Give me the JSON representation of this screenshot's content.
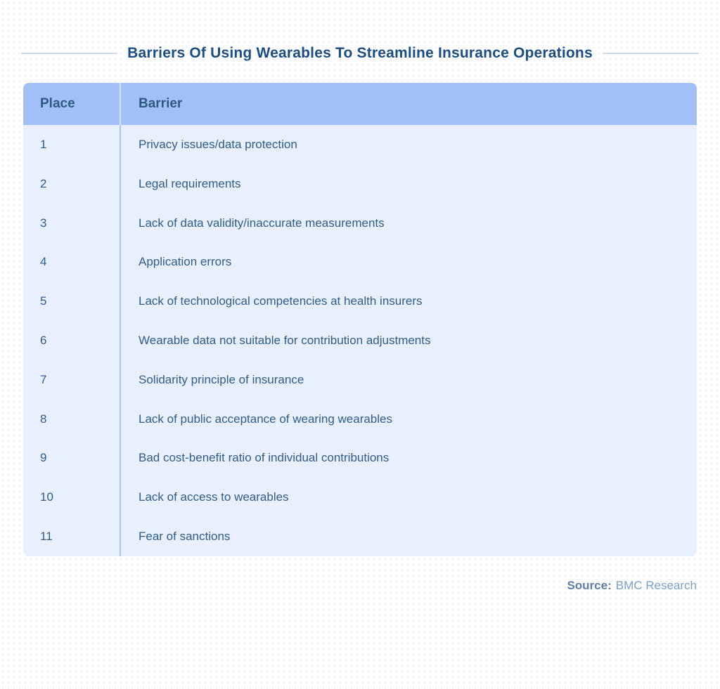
{
  "title": "Barriers Of Using Wearables To Streamline Insurance Operations",
  "source": {
    "label": "Source:",
    "value": "BMC Research"
  },
  "colors": {
    "title_text": "#1b4e84",
    "header_bg": "#a3bff7",
    "header_text": "#2d5b80",
    "body_bg": "#e9f0fd",
    "body_text": "#2e5d8c",
    "divider": "#a9c3ef",
    "title_line": "#ccdaf1",
    "source_label": "#5c7fa6",
    "source_value": "#7aa1c9"
  },
  "chart_data": {
    "type": "table",
    "title": "Barriers Of Using Wearables To Streamline Insurance Operations",
    "columns": [
      "Place",
      "Barrier"
    ],
    "rows": [
      {
        "place": "1",
        "barrier": "Privacy issues/data protection"
      },
      {
        "place": "2",
        "barrier": "Legal requirements"
      },
      {
        "place": "3",
        "barrier": "Lack of data validity/inaccurate measurements"
      },
      {
        "place": "4",
        "barrier": "Application errors"
      },
      {
        "place": "5",
        "barrier": "Lack of technological competencies at health insurers"
      },
      {
        "place": "6",
        "barrier": "Wearable data not suitable for contribution adjustments"
      },
      {
        "place": "7",
        "barrier": "Solidarity principle of insurance"
      },
      {
        "place": "8",
        "barrier": "Lack of public acceptance of wearing wearables"
      },
      {
        "place": "9",
        "barrier": "Bad cost-benefit ratio of individual contributions"
      },
      {
        "place": "10",
        "barrier": "Lack of access to wearables"
      },
      {
        "place": "11",
        "barrier": "Fear of sanctions"
      }
    ],
    "legend": null,
    "grid": "off"
  }
}
